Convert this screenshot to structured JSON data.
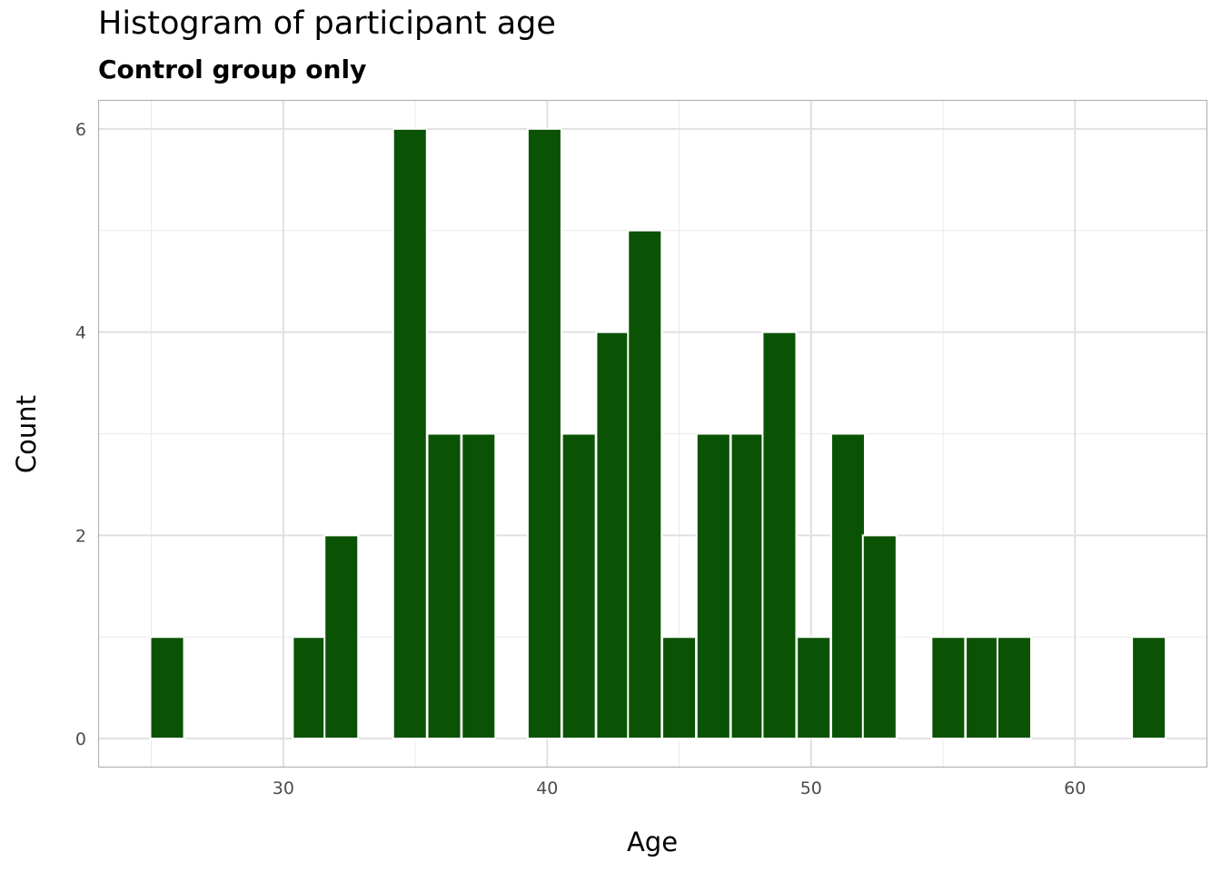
{
  "chart_data": {
    "type": "bar",
    "title": "Histogram of participant age",
    "subtitle": "Control group only",
    "xlabel": "Age",
    "ylabel": "Count",
    "bin_width": 1.275,
    "x_ticks": [
      30,
      40,
      50,
      60
    ],
    "y_ticks": [
      0,
      2,
      4,
      6
    ],
    "xlim": [
      23.0,
      65.0
    ],
    "ylim": [
      -0.28,
      6.28
    ],
    "bar_color": "#0b5304",
    "bar_edge_color": "#ffffff",
    "grid": true,
    "bins": [
      {
        "x": 25.6,
        "count": 1
      },
      {
        "x": 31.0,
        "count": 1
      },
      {
        "x": 32.2,
        "count": 2
      },
      {
        "x": 34.8,
        "count": 6
      },
      {
        "x": 36.1,
        "count": 3
      },
      {
        "x": 37.4,
        "count": 3
      },
      {
        "x": 39.9,
        "count": 6
      },
      {
        "x": 41.2,
        "count": 3
      },
      {
        "x": 42.5,
        "count": 4
      },
      {
        "x": 43.7,
        "count": 5
      },
      {
        "x": 45.0,
        "count": 1
      },
      {
        "x": 46.3,
        "count": 3
      },
      {
        "x": 47.6,
        "count": 3
      },
      {
        "x": 48.8,
        "count": 4
      },
      {
        "x": 50.1,
        "count": 1
      },
      {
        "x": 51.4,
        "count": 3
      },
      {
        "x": 52.6,
        "count": 2
      },
      {
        "x": 55.2,
        "count": 1
      },
      {
        "x": 56.5,
        "count": 1
      },
      {
        "x": 57.7,
        "count": 1
      },
      {
        "x": 62.8,
        "count": 1
      }
    ]
  }
}
